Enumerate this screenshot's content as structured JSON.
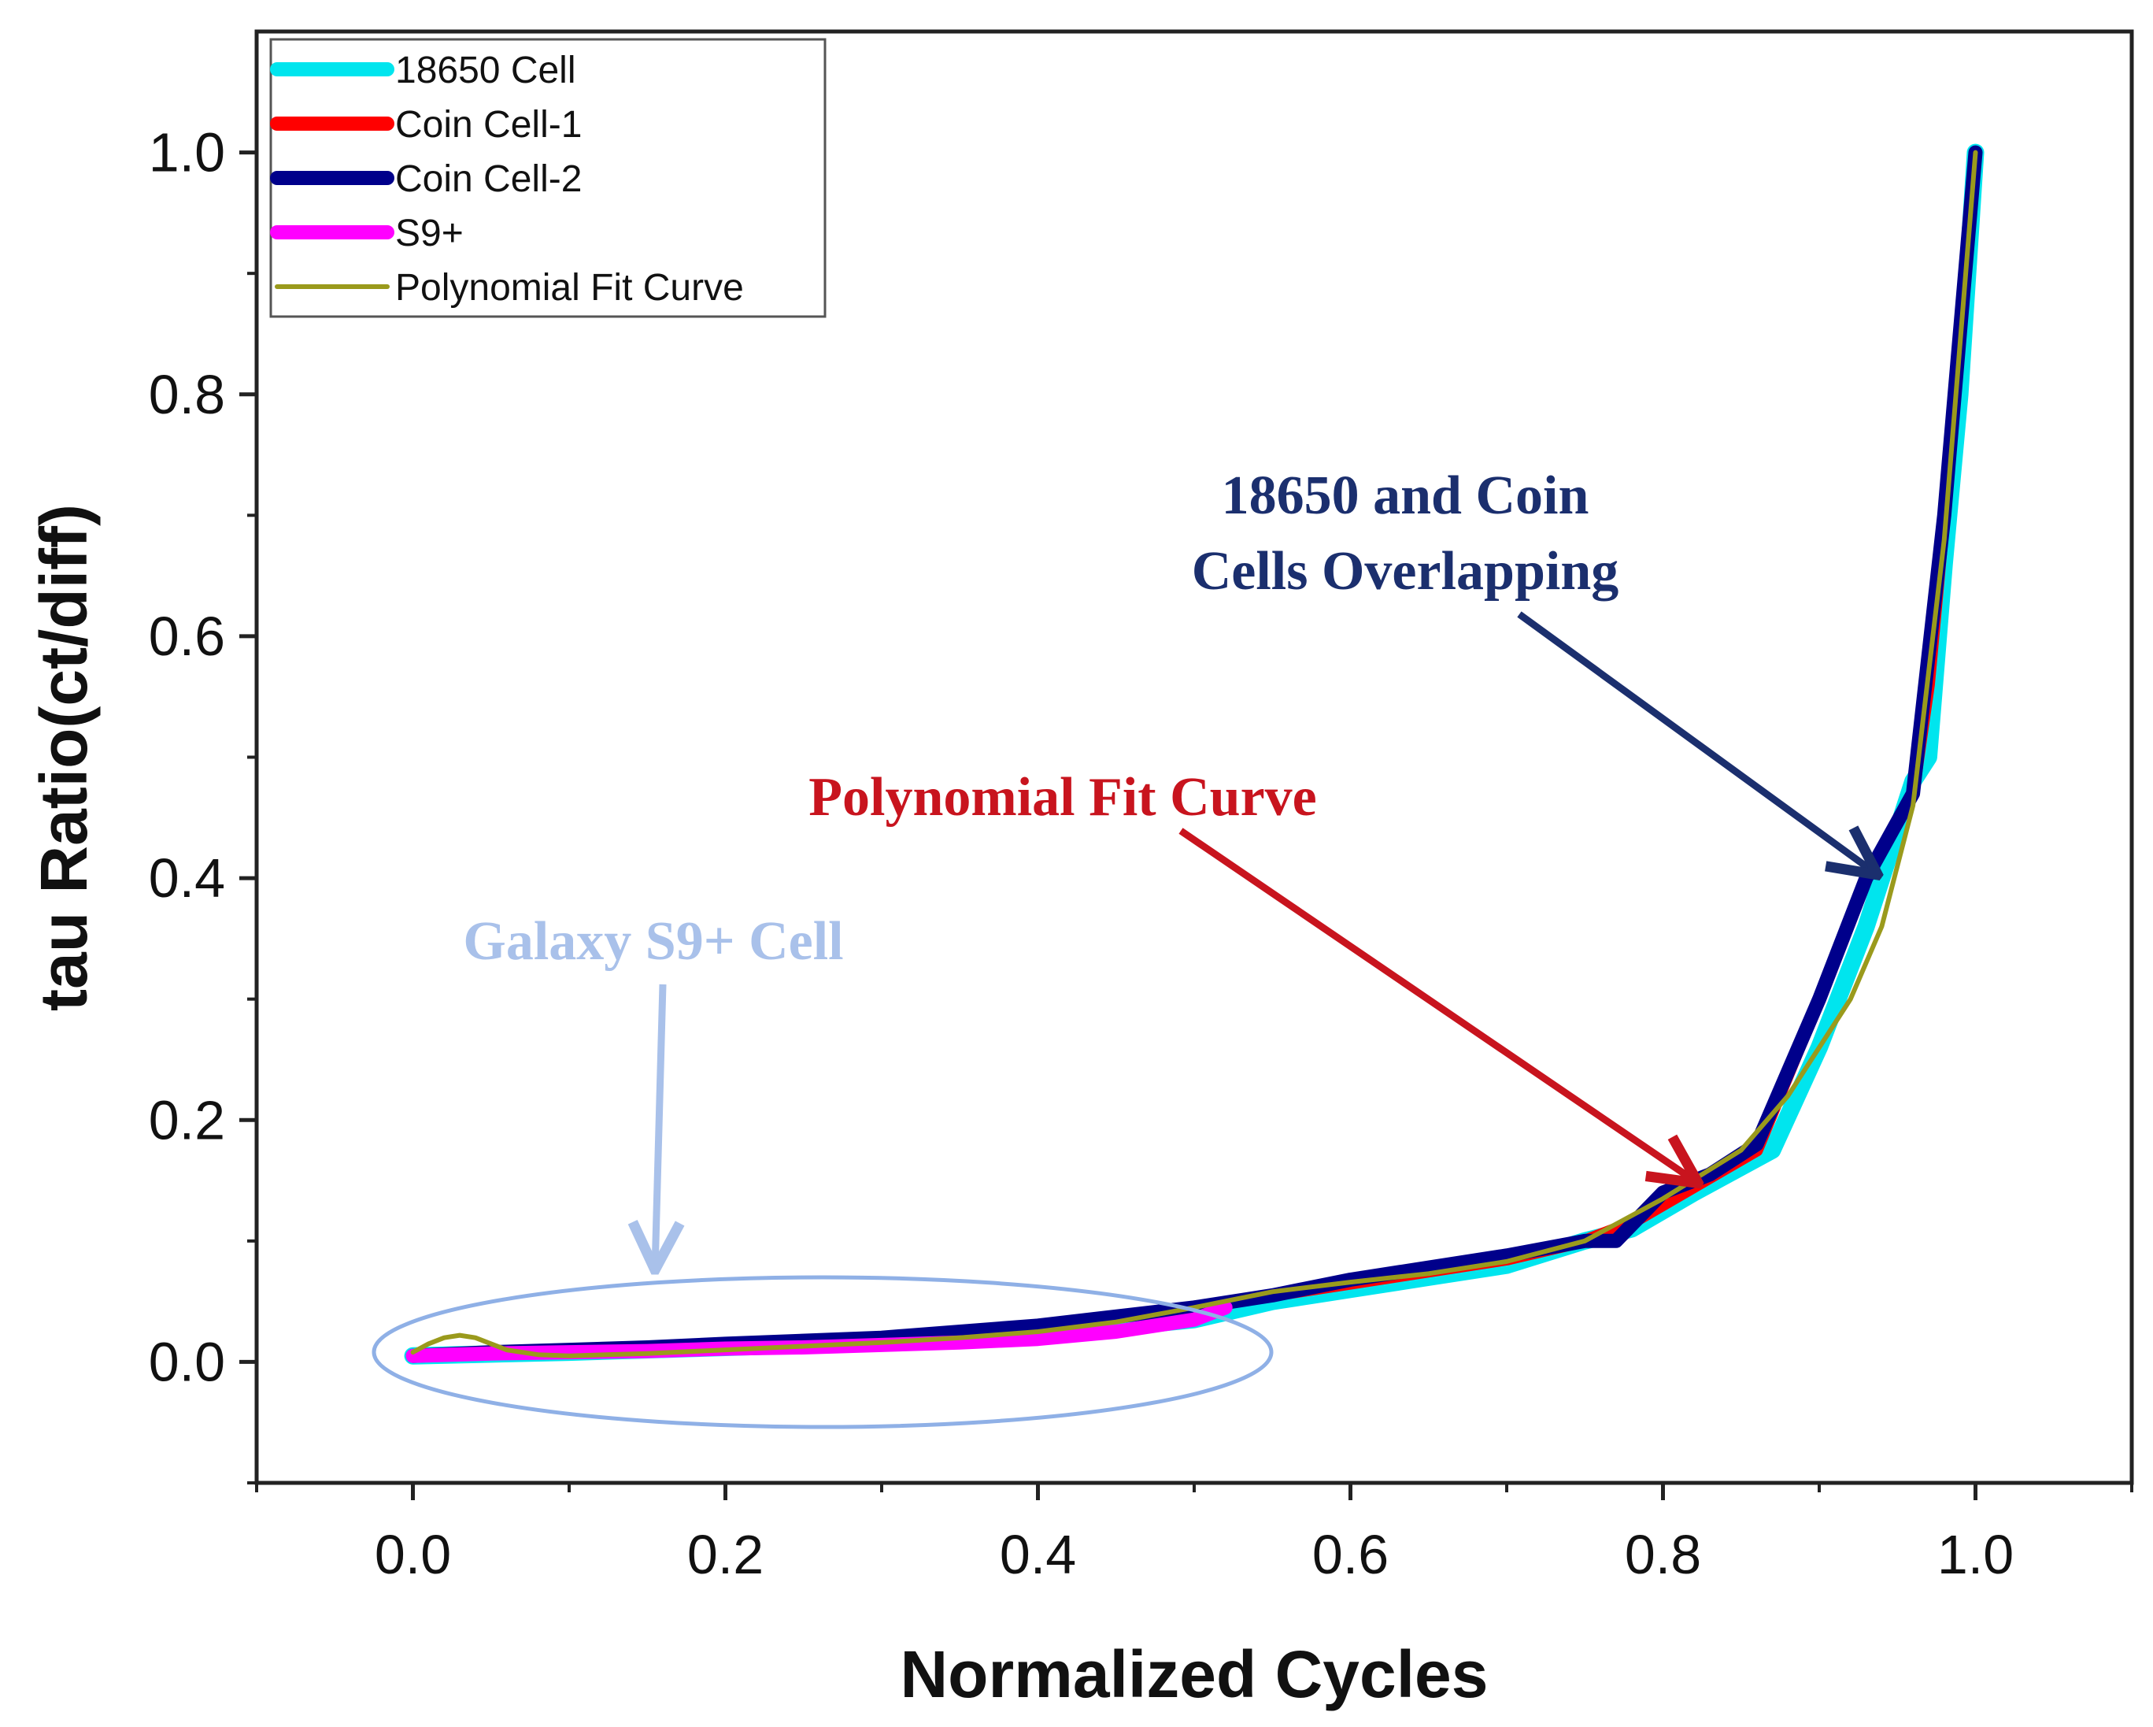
{
  "chart_data": {
    "type": "line",
    "xlabel": "Normalized Cycles",
    "ylabel": "tau Ratio(ct/diff)",
    "xlim": [
      -0.1,
      1.1
    ],
    "ylim": [
      -0.1,
      1.1
    ],
    "xticks": [
      "0.0",
      "0.2",
      "0.4",
      "0.6",
      "0.8",
      "1.0"
    ],
    "yticks": [
      "0.0",
      "0.2",
      "0.4",
      "0.6",
      "0.8",
      "1.0"
    ],
    "xtick_values": [
      0.0,
      0.2,
      0.4,
      0.6,
      0.8,
      1.0
    ],
    "ytick_values": [
      0.0,
      0.2,
      0.4,
      0.6,
      0.8,
      1.0
    ],
    "grid": false,
    "legend_position": "top-left",
    "series": [
      {
        "name": "18650 Cell",
        "color": "#00e5ee",
        "x": [
          0.0,
          0.1,
          0.2,
          0.3,
          0.4,
          0.5,
          0.55,
          0.6,
          0.65,
          0.7,
          0.75,
          0.78,
          0.82,
          0.87,
          0.9,
          0.93,
          0.96,
          0.97,
          0.98,
          0.99,
          1.0
        ],
        "y": [
          0.005,
          0.008,
          0.012,
          0.016,
          0.022,
          0.035,
          0.05,
          0.06,
          0.07,
          0.08,
          0.1,
          0.11,
          0.14,
          0.175,
          0.26,
          0.36,
          0.48,
          0.5,
          0.66,
          0.8,
          1.0
        ]
      },
      {
        "name": "Coin Cell-1",
        "color": "#ff0000",
        "x": [
          0.55,
          0.6,
          0.65,
          0.7,
          0.75,
          0.78,
          0.82,
          0.86,
          0.9,
          0.93,
          0.96,
          0.97,
          0.98,
          0.99,
          1.0
        ],
        "y": [
          0.055,
          0.065,
          0.075,
          0.085,
          0.1,
          0.115,
          0.145,
          0.175,
          0.3,
          0.4,
          0.47,
          0.56,
          0.7,
          0.85,
          1.0
        ]
      },
      {
        "name": "Coin Cell-2",
        "color": "#00008b",
        "x": [
          0.0,
          0.05,
          0.1,
          0.15,
          0.2,
          0.3,
          0.4,
          0.5,
          0.55,
          0.6,
          0.65,
          0.7,
          0.75,
          0.77,
          0.8,
          0.83,
          0.86,
          0.9,
          0.93,
          0.96,
          0.98,
          0.99,
          1.0
        ],
        "y": [
          0.005,
          0.008,
          0.01,
          0.012,
          0.015,
          0.02,
          0.03,
          0.045,
          0.055,
          0.068,
          0.078,
          0.088,
          0.1,
          0.1,
          0.14,
          0.155,
          0.18,
          0.3,
          0.4,
          0.47,
          0.7,
          0.85,
          1.0
        ]
      },
      {
        "name": "S9+",
        "color": "#ff00ff",
        "x": [
          0.0,
          0.05,
          0.1,
          0.15,
          0.2,
          0.25,
          0.3,
          0.35,
          0.4,
          0.45,
          0.5,
          0.52
        ],
        "y": [
          0.005,
          0.007,
          0.008,
          0.009,
          0.011,
          0.012,
          0.014,
          0.016,
          0.019,
          0.025,
          0.035,
          0.045
        ]
      },
      {
        "name": "Polynomial Fit Curve",
        "color": "#9a9a1c",
        "x": [
          0.0,
          0.01,
          0.02,
          0.03,
          0.04,
          0.05,
          0.06,
          0.08,
          0.1,
          0.15,
          0.2,
          0.25,
          0.3,
          0.35,
          0.4,
          0.45,
          0.5,
          0.55,
          0.6,
          0.65,
          0.7,
          0.75,
          0.8,
          0.85,
          0.88,
          0.9,
          0.92,
          0.94,
          0.96,
          0.98,
          1.0
        ],
        "y": [
          0.008,
          0.015,
          0.02,
          0.022,
          0.02,
          0.015,
          0.01,
          0.006,
          0.005,
          0.007,
          0.01,
          0.013,
          0.016,
          0.02,
          0.025,
          0.033,
          0.045,
          0.058,
          0.066,
          0.073,
          0.083,
          0.1,
          0.135,
          0.175,
          0.22,
          0.26,
          0.3,
          0.36,
          0.46,
          0.68,
          1.0
        ]
      }
    ],
    "annotations": [
      {
        "lines": [
          "18650 and Coin",
          "Cells Overlapping"
        ],
        "color": "#1b2f6e",
        "arrow_to": [
          0.935,
          0.405
        ]
      },
      {
        "lines": [
          "Polynomial Fit Curve"
        ],
        "color": "#c8141e",
        "arrow_to": [
          0.82,
          0.15
        ]
      },
      {
        "lines": [
          "Galaxy S9+ Cell"
        ],
        "color": "#a9c1ea",
        "arrow_to": [
          0.155,
          0.08
        ]
      }
    ]
  }
}
